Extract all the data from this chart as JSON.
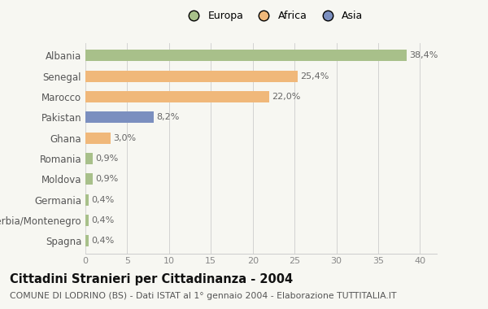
{
  "categories": [
    "Albania",
    "Senegal",
    "Marocco",
    "Pakistan",
    "Ghana",
    "Romania",
    "Moldova",
    "Germania",
    "Serbia/Montenegro",
    "Spagna"
  ],
  "values": [
    38.4,
    25.4,
    22.0,
    8.2,
    3.0,
    0.9,
    0.9,
    0.4,
    0.4,
    0.4
  ],
  "labels": [
    "38,4%",
    "25,4%",
    "22,0%",
    "8,2%",
    "3,0%",
    "0,9%",
    "0,9%",
    "0,4%",
    "0,4%",
    "0,4%"
  ],
  "colors": [
    "#a8c08a",
    "#f0b87a",
    "#f0b87a",
    "#7b8fbf",
    "#f0b87a",
    "#a8c08a",
    "#a8c08a",
    "#a8c08a",
    "#a8c08a",
    "#a8c08a"
  ],
  "legend": [
    {
      "label": "Europa",
      "color": "#a8c08a"
    },
    {
      "label": "Africa",
      "color": "#f0b87a"
    },
    {
      "label": "Asia",
      "color": "#7b8fbf"
    }
  ],
  "xlim": [
    0,
    42
  ],
  "xticks": [
    0,
    5,
    10,
    15,
    20,
    25,
    30,
    35,
    40
  ],
  "title": "Cittadini Stranieri per Cittadinanza - 2004",
  "subtitle": "COMUNE DI LODRINO (BS) - Dati ISTAT al 1° gennaio 2004 - Elaborazione TUTTITALIA.IT",
  "bg_color": "#f7f7f2",
  "bar_height": 0.55,
  "label_fontsize": 8.0,
  "ytick_fontsize": 8.5,
  "xtick_fontsize": 8.0,
  "title_fontsize": 10.5,
  "subtitle_fontsize": 7.8
}
